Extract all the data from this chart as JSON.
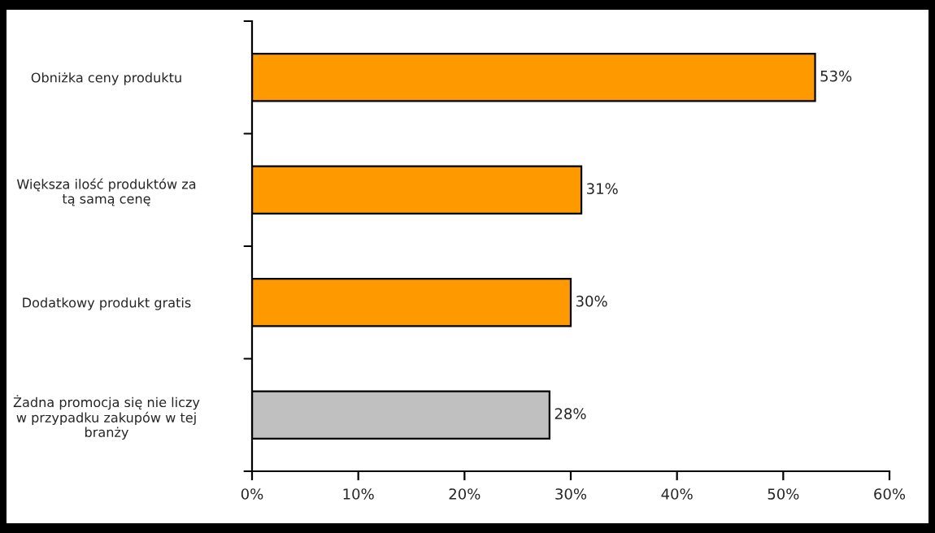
{
  "chart_data": {
    "type": "bar",
    "orientation": "horizontal",
    "categories": [
      "Obniżka ceny produktu",
      "Większa ilość produktów za\ntą samą cenę",
      "Dodatkowy produkt gratis",
      "Żadna promocja się nie liczy\nw przypadku zakupów w tej\nbranży"
    ],
    "values": [
      53,
      31,
      30,
      28
    ],
    "colors": [
      "#ff9900",
      "#ff9900",
      "#ff9900",
      "#c0c0c0"
    ],
    "value_labels": [
      "53%",
      "31%",
      "30%",
      "28%"
    ],
    "xlim": [
      0,
      60
    ],
    "xticks": [
      {
        "value": 0,
        "label": "0%"
      },
      {
        "value": 10,
        "label": "10%"
      },
      {
        "value": 20,
        "label": "20%"
      },
      {
        "value": 30,
        "label": "30%"
      },
      {
        "value": 40,
        "label": "40%"
      },
      {
        "value": 50,
        "label": "50%"
      },
      {
        "value": 60,
        "label": "60%"
      }
    ],
    "grid": false,
    "legend": false
  }
}
